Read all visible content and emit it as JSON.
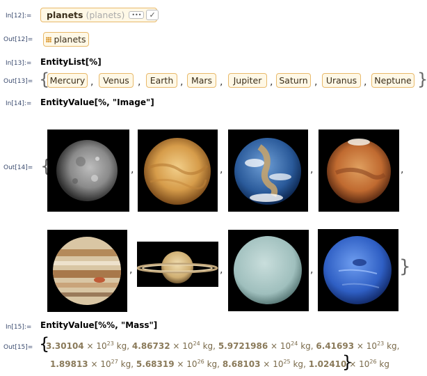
{
  "cells": {
    "in12_label": "In[12]:=",
    "in12_entity_text": "planets",
    "in12_entity_hint": "(planets)",
    "in12_more_label": "•••",
    "in12_check_label": "✓",
    "out12_label": "Out[12]=",
    "out12_entity": "planets",
    "in13_label": "In[13]:=",
    "in13_code": "EntityList[%]",
    "out13_label": "Out[13]=",
    "in14_label": "In[14]:=",
    "in14_code": "EntityValue[%, \"Image\"]",
    "out14_label": "Out[14]=",
    "in15_label": "In[15]:=",
    "in15_code": "EntityValue[%%, \"Mass\"]",
    "out15_label": "Out[15]="
  },
  "planets": [
    "Mercury",
    "Venus",
    "Earth",
    "Mars",
    "Jupiter",
    "Saturn",
    "Uranus",
    "Neptune"
  ],
  "masses": [
    {
      "mantissa": "3.30104",
      "exp": "23",
      "unit": "kg"
    },
    {
      "mantissa": "4.86732",
      "exp": "24",
      "unit": "kg"
    },
    {
      "mantissa": "5.9721986",
      "exp": "24",
      "unit": "kg"
    },
    {
      "mantissa": "6.41693",
      "exp": "23",
      "unit": "kg"
    },
    {
      "mantissa": "1.89813",
      "exp": "27",
      "unit": "kg"
    },
    {
      "mantissa": "5.68319",
      "exp": "26",
      "unit": "kg"
    },
    {
      "mantissa": "8.68103",
      "exp": "25",
      "unit": "kg"
    },
    {
      "mantissa": "1.02410",
      "exp": "26",
      "unit": "kg"
    }
  ],
  "colors": {
    "entity_border": "#e8b96a",
    "entity_fill": "#fff8e6",
    "label_color": "#3a4a6e",
    "mass_color": "#7a6a4a"
  },
  "symbols": {
    "times": "×",
    "ten": "10",
    "comma": ","
  }
}
